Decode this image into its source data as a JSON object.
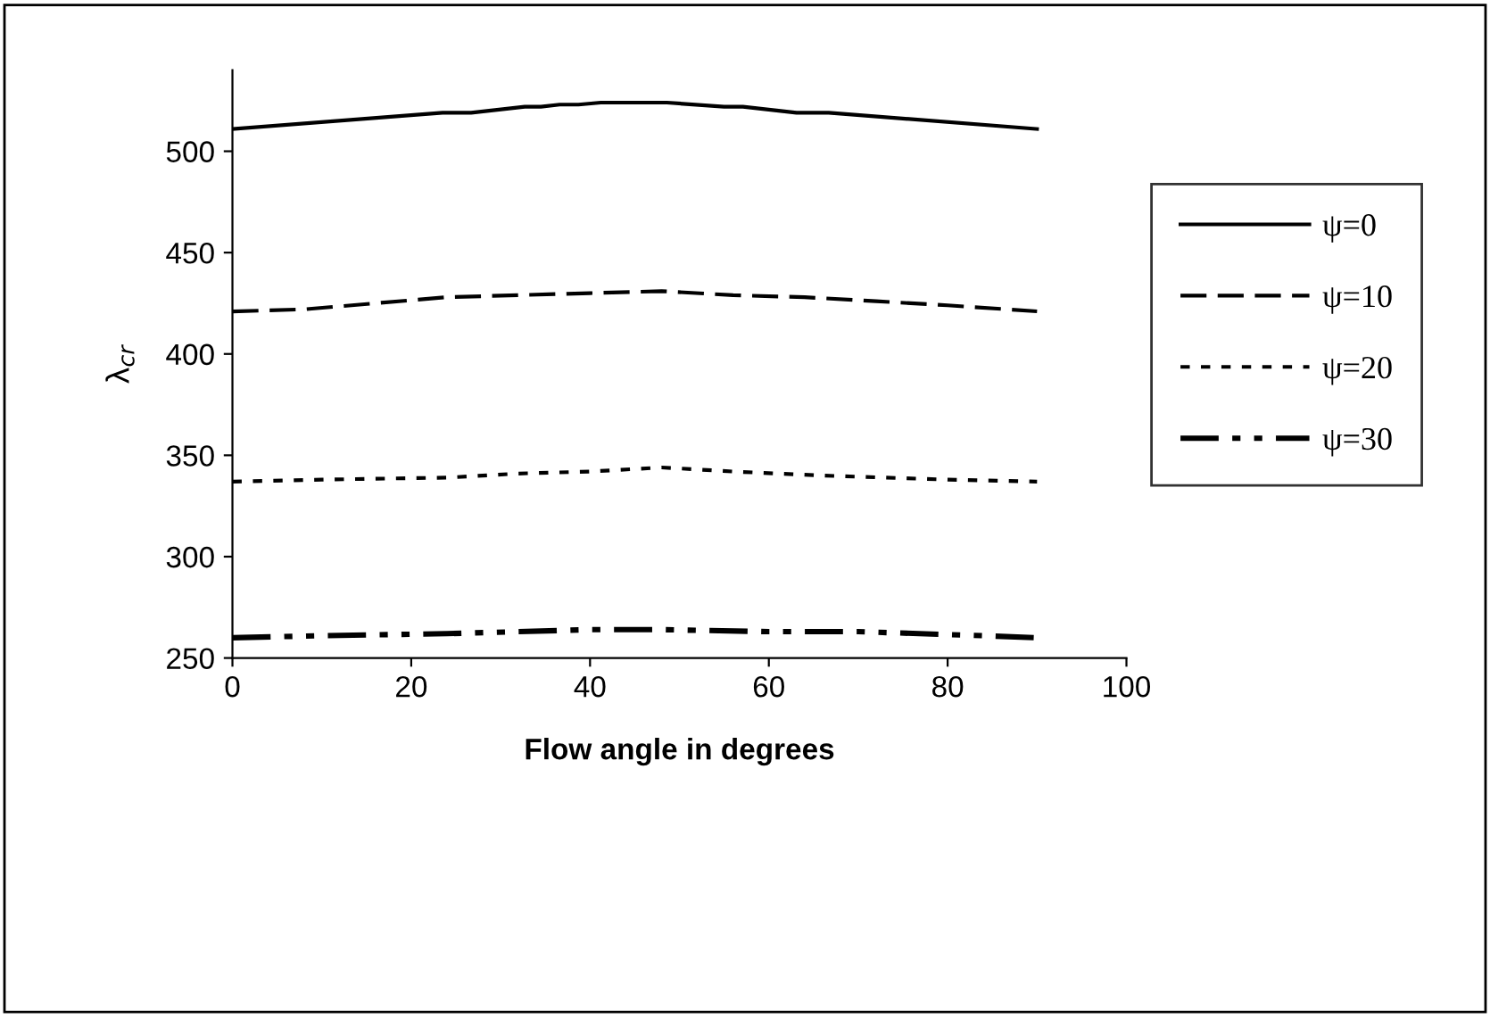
{
  "chart_data": {
    "type": "line",
    "xlabel": "Flow angle in degrees",
    "ylabel": "λ$_{cr}$",
    "xlim": [
      0,
      100
    ],
    "xticks": [
      0,
      20,
      40,
      60,
      80,
      100
    ],
    "ylim": [
      250,
      540
    ],
    "yticks": [
      250,
      300,
      350,
      400,
      450,
      500
    ],
    "grid": false,
    "legend": "right",
    "marker": "none",
    "series": [
      {
        "name": "ψ=0",
        "color": "#000000",
        "line_style": "solid",
        "x": [
          0,
          23.5,
          26.7,
          32.7,
          34.5,
          36.6,
          38.7,
          41.2,
          48.6,
          55,
          57.1,
          63.1,
          66.7,
          90
        ],
        "values": [
          511,
          519,
          519,
          522,
          522,
          523,
          523,
          524,
          524,
          522,
          522,
          519,
          519,
          511
        ]
      },
      {
        "name": "ψ=10",
        "color": "#000000",
        "line_style": "dashed",
        "x": [
          0,
          8,
          16,
          24,
          32,
          40,
          48,
          56,
          64,
          72,
          80,
          90
        ],
        "values": [
          421,
          422,
          425,
          428,
          429,
          430,
          431,
          429,
          428,
          426,
          424,
          421
        ]
      },
      {
        "name": "ψ=20",
        "color": "#000000",
        "line_style": "dotted",
        "x": [
          0,
          10,
          24,
          32,
          40,
          48,
          56,
          66,
          80,
          90
        ],
        "values": [
          337,
          338,
          339,
          341,
          342,
          344,
          342,
          340,
          338,
          337
        ]
      },
      {
        "name": "ψ=30",
        "color": "#000000",
        "line_style": "dashdot",
        "x": [
          0,
          10,
          24,
          40,
          48,
          60,
          70,
          84,
          90
        ],
        "values": [
          260,
          261,
          262,
          264,
          264,
          263,
          263,
          261,
          260
        ]
      }
    ]
  }
}
